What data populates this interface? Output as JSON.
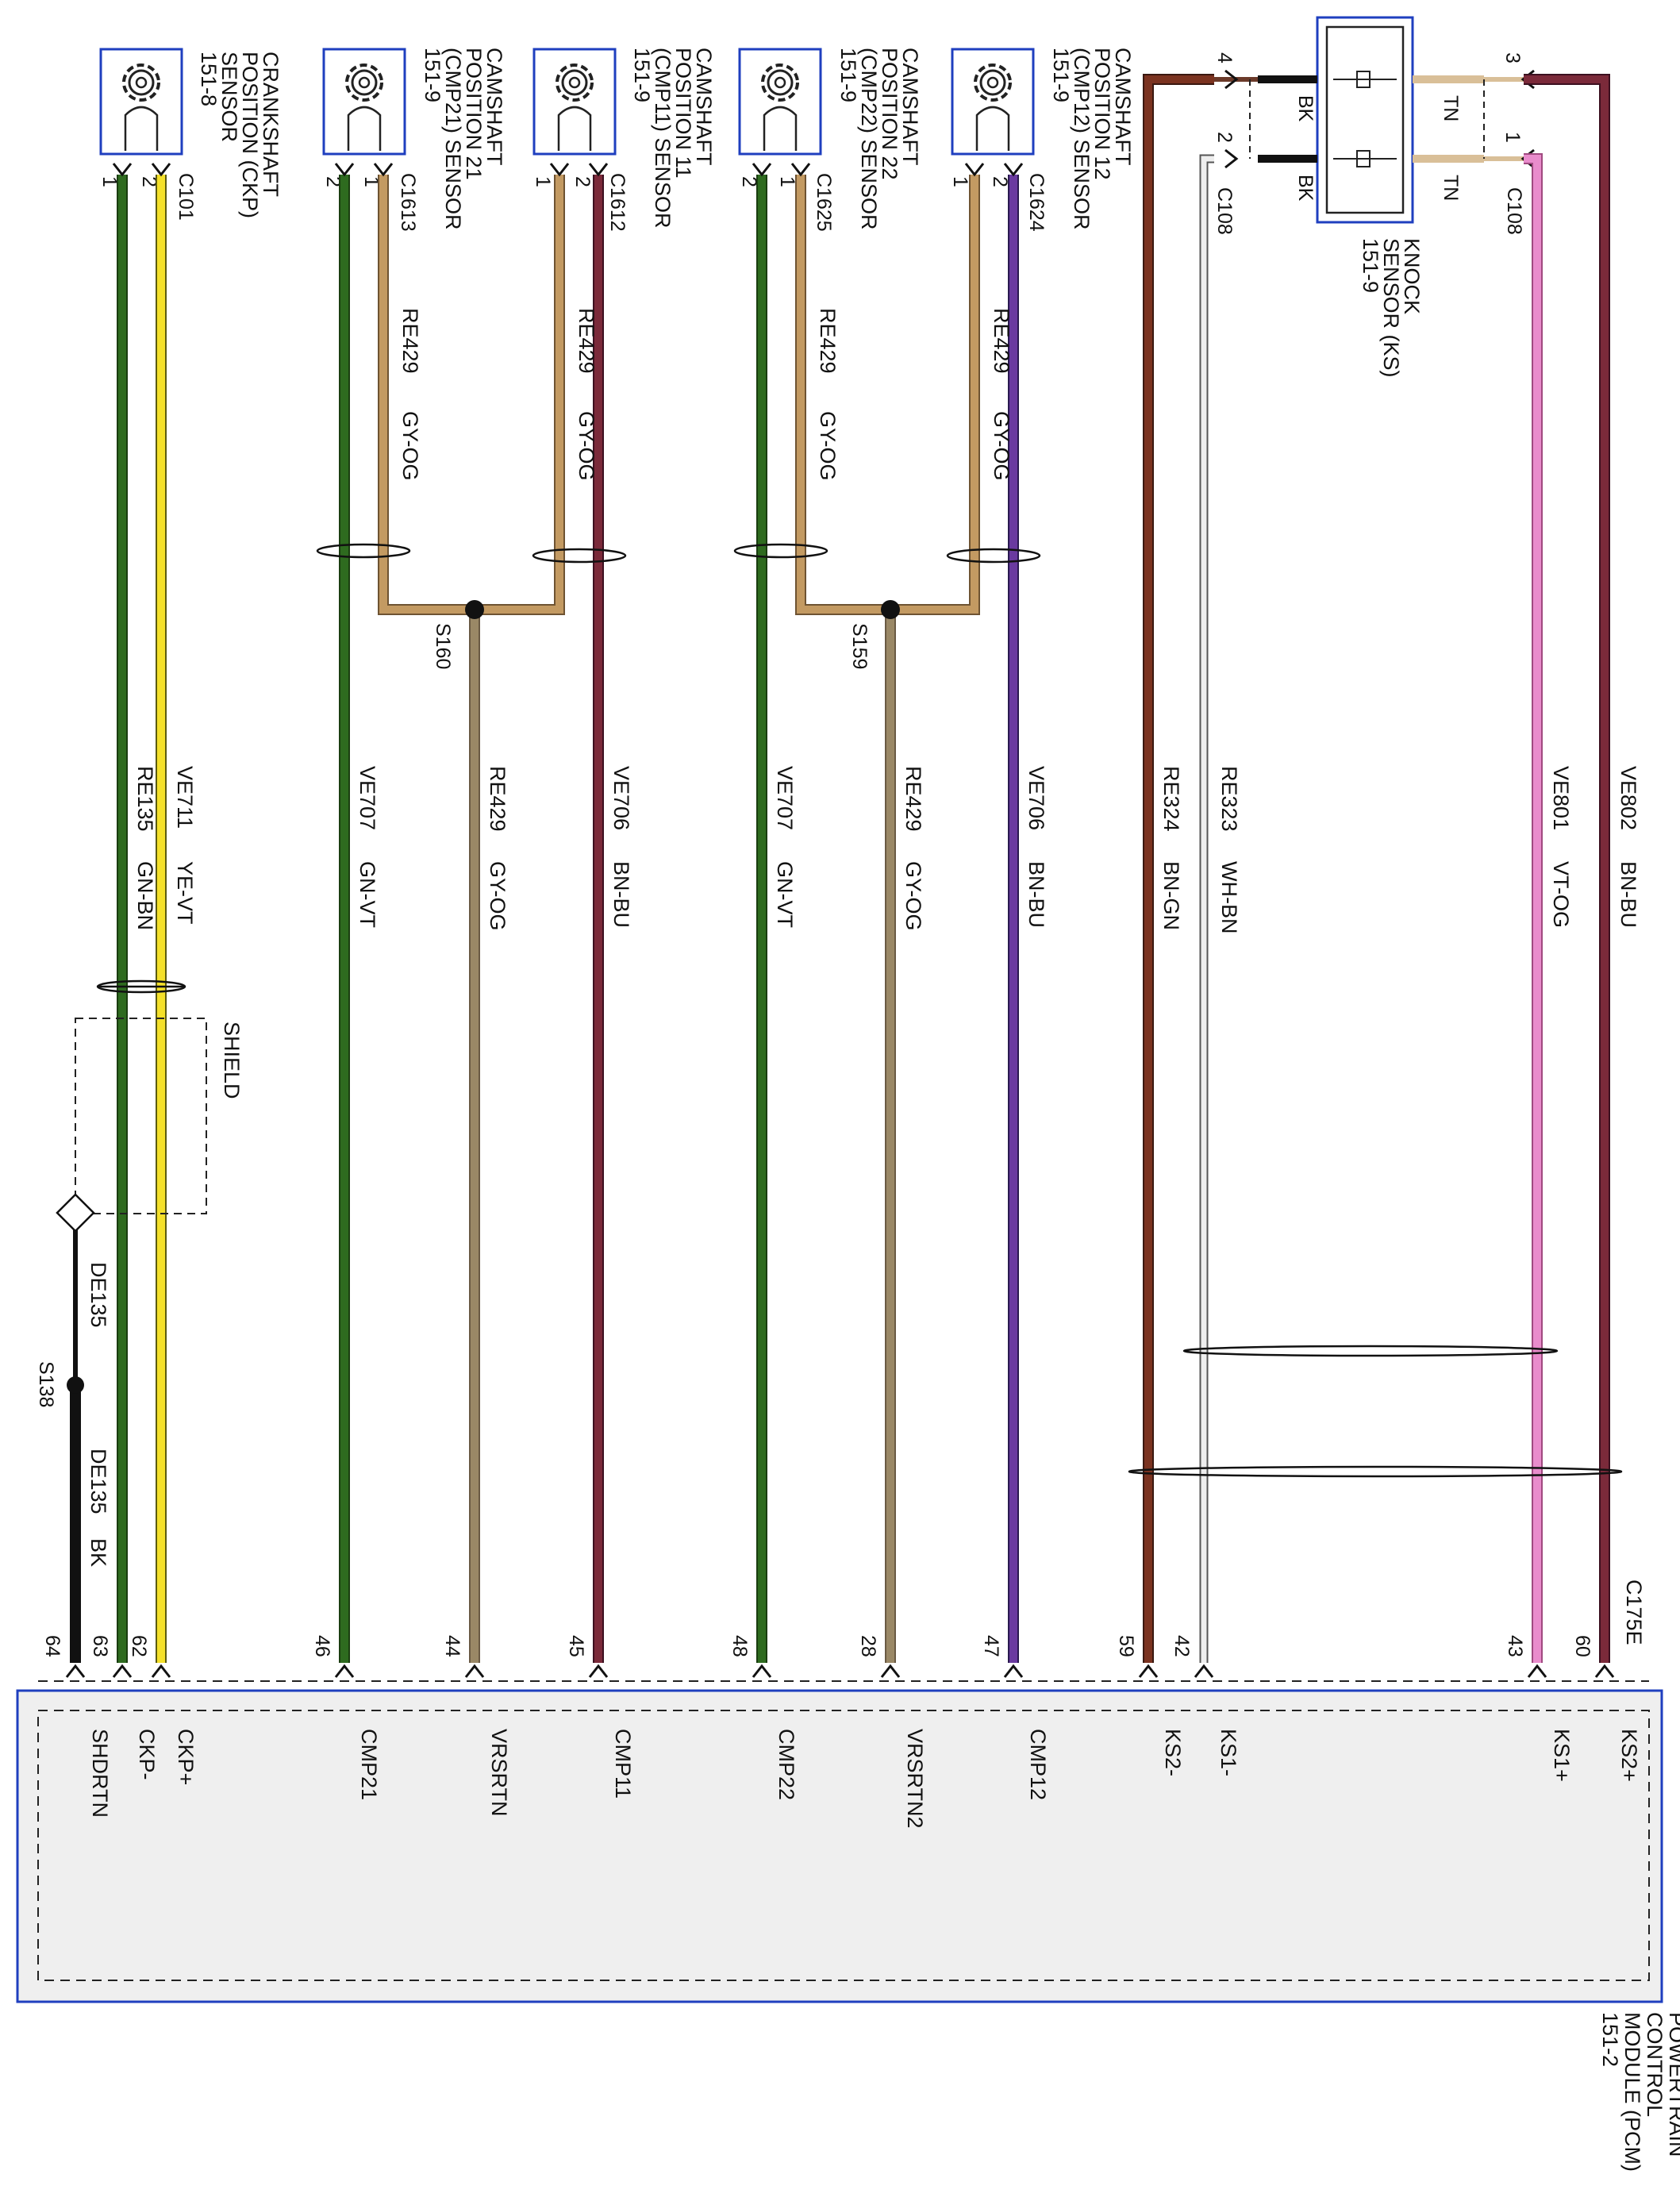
{
  "colors": {
    "green": "#2e6b1f",
    "yellow": "#f4e02a",
    "tan": "#c39a62",
    "brown": "#7b3320",
    "gray_orange": "#9a8866",
    "brown_blue": "#5a2a3a",
    "white_brown": "#d8d0c8",
    "violet_orange": "#e98ccc",
    "black": "#111111",
    "frame_blue": "#1f3fbf"
  },
  "components": {
    "ckp": {
      "lines": [
        "CRANKSHAFT",
        "POSITION (CKP)",
        "SENSOR",
        "151-8"
      ],
      "connector": "C101"
    },
    "cmp21": {
      "lines": [
        "CAMSHAFT",
        "POSITION 21",
        "(CMP21) SENSOR",
        "151-9"
      ],
      "connector": "C1613"
    },
    "cmp11": {
      "lines": [
        "CAMSHAFT",
        "POSITION 11",
        "(CMP11) SENSOR",
        "151-9"
      ],
      "connector": "C1612"
    },
    "cmp22": {
      "lines": [
        "CAMSHAFT",
        "POSITION 22",
        "(CMP22) SENSOR",
        "151-9"
      ],
      "connector": "C1625"
    },
    "cmp12": {
      "lines": [
        "CAMSHAFT",
        "POSITION 12",
        "(CMP12) SENSOR",
        "151-9"
      ],
      "connector": "C1624"
    },
    "knock": {
      "lines": [
        "KNOCK",
        "SENSOR (KS)",
        "151-9"
      ],
      "connector_a": "C108",
      "connector_b": "C108",
      "pin_3": "3",
      "pin_4": "4",
      "pin_2": "2",
      "pin_1": "1",
      "wire_bk_a": "BK",
      "wire_bk_b": "BK",
      "wire_tn_a": "TN",
      "wire_tn_b": "TN"
    },
    "pcm": {
      "lines": [
        "POWERTRAIN",
        "CONTROL",
        "MODULE (PCM)",
        "151-2"
      ],
      "connector": "C175E"
    }
  },
  "sensor_pins": {
    "ckp": [
      "1",
      "2"
    ],
    "cmp21": [
      "2",
      "1"
    ],
    "cmp11": [
      "1",
      "2"
    ],
    "cmp22": [
      "2",
      "1"
    ],
    "cmp12": [
      "1",
      "2"
    ]
  },
  "splices": {
    "s160": "S160",
    "s159": "S159",
    "s138": "S138",
    "shield": "SHIELD"
  },
  "short_wires": {
    "cmp21_pin1": {
      "circuit": "RE429",
      "color": "GY-OG"
    },
    "cmp11_pin1": {
      "circuit": "RE429",
      "color": "GY-OG"
    },
    "cmp22_pin1": {
      "circuit": "RE429",
      "color": "GY-OG"
    },
    "cmp12_pin1": {
      "circuit": "RE429",
      "color": "GY-OG"
    }
  },
  "wires": [
    {
      "circuit": "RE135",
      "color": "GN-BN",
      "pin": "63",
      "signal": "CKP-"
    },
    {
      "circuit": "VE711",
      "color": "YE-VT",
      "pin": "62",
      "signal": "CKP+"
    },
    {
      "circuit": "VE707",
      "color": "GN-VT",
      "pin": "46",
      "signal": "CMP21"
    },
    {
      "circuit": "RE429",
      "color": "GY-OG",
      "pin": "44",
      "signal": "VRSRTN"
    },
    {
      "circuit": "VE706",
      "color": "BN-BU",
      "pin": "45",
      "signal": "CMP11"
    },
    {
      "circuit": "VE707",
      "color": "GN-VT",
      "pin": "48",
      "signal": "CMP22"
    },
    {
      "circuit": "RE429",
      "color": "GY-OG",
      "pin": "28",
      "signal": "VRSRTN2"
    },
    {
      "circuit": "VE706",
      "color": "BN-BU",
      "pin": "47",
      "signal": "CMP12"
    },
    {
      "circuit": "RE324",
      "color": "BN-GN",
      "pin": "59",
      "signal": "KS2-"
    },
    {
      "circuit": "RE323",
      "color": "WH-BN",
      "pin": "42",
      "signal": "KS1-"
    },
    {
      "circuit": "VE801",
      "color": "VT-OG",
      "pin": "43",
      "signal": "KS1+"
    },
    {
      "circuit": "VE802",
      "color": "BN-BU",
      "pin": "60",
      "signal": "KS2+"
    }
  ],
  "ground": {
    "circuit_upper": "DE135",
    "circuit_lower": "DE135",
    "color_lower": "BK",
    "pin": "64",
    "signal": "SHDRTN"
  }
}
